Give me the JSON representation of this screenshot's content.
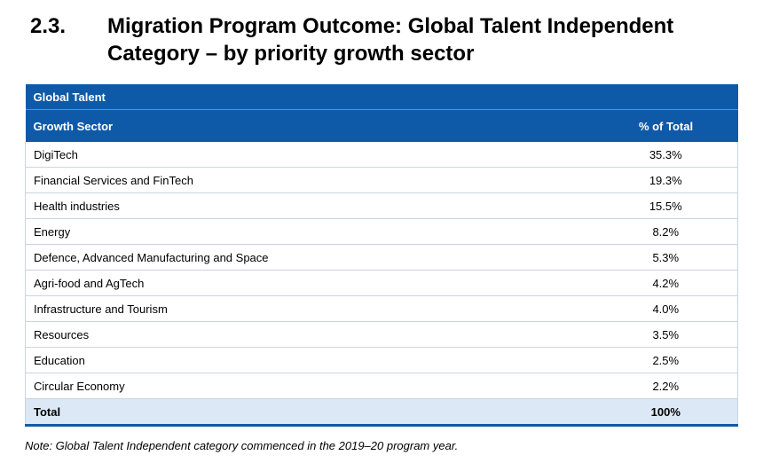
{
  "heading": {
    "number": "2.3.",
    "title": "Migration Program Outcome: Global Talent Independent Category – by priority growth sector"
  },
  "table": {
    "group_label": "Global Talent",
    "col_sector": "Growth Sector",
    "col_pct": "% of Total",
    "rows": [
      {
        "sector": "DigiTech",
        "pct": "35.3%"
      },
      {
        "sector": "Financial Services and FinTech",
        "pct": "19.3%"
      },
      {
        "sector": "Health industries",
        "pct": "15.5%"
      },
      {
        "sector": "Energy",
        "pct": "8.2%"
      },
      {
        "sector": "Defence, Advanced Manufacturing and Space",
        "pct": "5.3%"
      },
      {
        "sector": "Agri-food and AgTech",
        "pct": "4.2%"
      },
      {
        "sector": "Infrastructure and Tourism",
        "pct": "4.0%"
      },
      {
        "sector": "Resources",
        "pct": "3.5%"
      },
      {
        "sector": "Education",
        "pct": "2.5%"
      },
      {
        "sector": "Circular Economy",
        "pct": "2.2%"
      }
    ],
    "total": {
      "sector": "Total",
      "pct": "100%"
    }
  },
  "note": "Note: Global Talent Independent category commenced in the 2019–20 program year.",
  "colors": {
    "header_blue": "#0e5aa8",
    "total_row_bg": "#dce8f5"
  }
}
